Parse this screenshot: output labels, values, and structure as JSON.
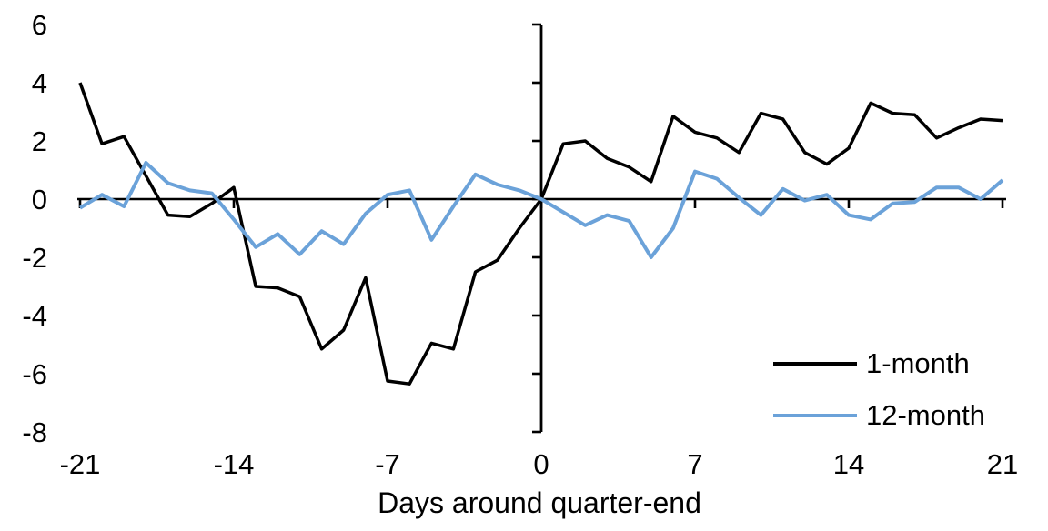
{
  "chart_data": {
    "type": "line",
    "title": "",
    "xlabel": "Days around quarter-end",
    "ylabel": "",
    "xlim": [
      -21,
      21
    ],
    "ylim": [
      -8,
      6
    ],
    "xticks": [
      -21,
      -14,
      -7,
      0,
      7,
      14,
      21
    ],
    "yticks": [
      6,
      4,
      2,
      0,
      -2,
      -4,
      -6,
      -8
    ],
    "grid": false,
    "legend_position": "bottom-right",
    "x": [
      -21,
      -20,
      -19,
      -18,
      -17,
      -16,
      -15,
      -14,
      -13,
      -12,
      -11,
      -10,
      -9,
      -8,
      -7,
      -6,
      -5,
      -4,
      -3,
      -2,
      -1,
      0,
      1,
      2,
      3,
      4,
      5,
      6,
      7,
      8,
      9,
      10,
      11,
      12,
      13,
      14,
      15,
      16,
      17,
      18,
      19,
      20,
      21
    ],
    "series": [
      {
        "name": "1-month",
        "color": "#000000",
        "values": [
          4.0,
          1.9,
          2.15,
          0.8,
          -0.55,
          -0.6,
          -0.15,
          0.4,
          -3.0,
          -3.05,
          -3.35,
          -5.15,
          -4.5,
          -2.7,
          -6.25,
          -6.35,
          -4.95,
          -5.15,
          -2.5,
          -2.1,
          -1.0,
          0.0,
          1.9,
          2.0,
          1.4,
          1.1,
          0.6,
          2.85,
          2.3,
          2.1,
          1.6,
          2.95,
          2.75,
          1.6,
          1.2,
          1.75,
          3.3,
          2.95,
          2.9,
          2.1,
          2.45,
          2.75,
          2.7
        ]
      },
      {
        "name": "12-month",
        "color": "#6BA2D9",
        "values": [
          -0.3,
          0.15,
          -0.25,
          1.25,
          0.55,
          0.3,
          0.2,
          -0.7,
          -1.65,
          -1.2,
          -1.9,
          -1.1,
          -1.55,
          -0.5,
          0.15,
          0.3,
          -1.4,
          -0.25,
          0.85,
          0.5,
          0.3,
          0.0,
          -0.45,
          -0.9,
          -0.55,
          -0.75,
          -2.0,
          -1.0,
          0.95,
          0.7,
          0.05,
          -0.55,
          0.35,
          -0.05,
          0.15,
          -0.55,
          -0.7,
          -0.15,
          -0.1,
          0.4,
          0.4,
          0.0,
          0.65
        ]
      }
    ]
  }
}
